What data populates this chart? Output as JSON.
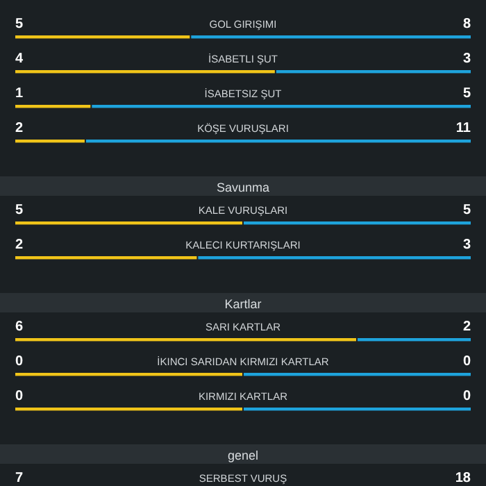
{
  "chart_data": [
    {
      "type": "other",
      "categories": [
        "GOL GIRIŞIMI",
        "İSABETLI ŞUT",
        "İSABETSIZ ŞUT",
        "KÖŞE VURUŞLARI"
      ],
      "data_labels": true,
      "series": [
        {
          "color": "#f0c419",
          "values": [
            5,
            4,
            1,
            2
          ]
        },
        {
          "color": "#1ea3dc",
          "values": [
            8,
            3,
            5,
            11
          ]
        }
      ]
    },
    {
      "type": "other",
      "title": "Savunma",
      "categories": [
        "KALE VURUŞLARI",
        "KALECI KURTARIŞLARI"
      ],
      "data_labels": true,
      "series": [
        {
          "color": "#f0c419",
          "values": [
            5,
            2
          ]
        },
        {
          "color": "#1ea3dc",
          "values": [
            5,
            3
          ]
        }
      ]
    },
    {
      "type": "other",
      "title": "Kartlar",
      "categories": [
        "SARI KARTLAR",
        "İKINCI SARIDAN KIRMIZI KARTLAR",
        "KIRMIZI KARTLAR"
      ],
      "data_labels": true,
      "series": [
        {
          "color": "#f0c419",
          "values": [
            6,
            0,
            0
          ]
        },
        {
          "color": "#1ea3dc",
          "values": [
            2,
            0,
            0
          ]
        }
      ]
    },
    {
      "type": "other",
      "title": "genel",
      "categories": [
        "SERBEST VURUŞ"
      ],
      "data_labels": true,
      "series": [
        {
          "color": "#f0c419",
          "values": [
            7
          ]
        },
        {
          "color": "#1ea3dc",
          "values": [
            18
          ]
        }
      ]
    }
  ]
}
